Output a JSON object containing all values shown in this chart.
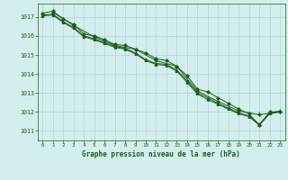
{
  "background_color": "#d4eeee",
  "grid_color": "#b8d8d8",
  "line_color": "#1a5c1a",
  "title": "Graphe pression niveau de la mer (hPa)",
  "xlim": [
    -0.5,
    23.5
  ],
  "ylim": [
    1010.5,
    1017.7
  ],
  "yticks": [
    1011,
    1012,
    1013,
    1014,
    1015,
    1016,
    1017
  ],
  "xticks": [
    0,
    1,
    2,
    3,
    4,
    5,
    6,
    7,
    8,
    9,
    10,
    11,
    12,
    13,
    14,
    15,
    16,
    17,
    18,
    19,
    20,
    21,
    22,
    23
  ],
  "series": [
    {
      "x": [
        0,
        1,
        2,
        3,
        4,
        5,
        6,
        7,
        8,
        9,
        10,
        11,
        12,
        13,
        14,
        15,
        16,
        17,
        18,
        19,
        20,
        21,
        22,
        23
      ],
      "y": [
        1017.2,
        1017.3,
        1016.9,
        1016.6,
        1016.1,
        1016.0,
        1015.8,
        1015.55,
        1015.5,
        1015.3,
        1015.1,
        1014.8,
        1014.7,
        1014.4,
        1013.9,
        1013.2,
        1013.05,
        1012.75,
        1012.45,
        1012.15,
        1011.9,
        1011.3,
        1012.0,
        1012.0
      ],
      "marker": "D"
    },
    {
      "x": [
        0,
        1,
        2,
        3,
        4,
        5,
        6,
        7,
        8,
        9,
        10,
        11,
        12,
        13,
        14,
        15,
        16,
        17,
        18,
        19,
        20,
        21,
        22,
        23
      ],
      "y": [
        1017.1,
        1017.15,
        1016.75,
        1016.45,
        1016.0,
        1015.85,
        1015.65,
        1015.45,
        1015.35,
        1015.1,
        1014.75,
        1014.55,
        1014.5,
        1014.2,
        1013.65,
        1013.0,
        1012.75,
        1012.45,
        1012.2,
        1011.95,
        1011.8,
        1011.35,
        1011.95,
        1012.05
      ],
      "marker": "^"
    },
    {
      "x": [
        0,
        1,
        2,
        3,
        4,
        5,
        6,
        7,
        8,
        9,
        10,
        11,
        12,
        13,
        14,
        15,
        16,
        17,
        18,
        19,
        20,
        21,
        22,
        23
      ],
      "y": [
        1017.05,
        1017.1,
        1016.7,
        1016.4,
        1015.95,
        1015.8,
        1015.6,
        1015.4,
        1015.3,
        1015.05,
        1014.7,
        1014.5,
        1014.45,
        1014.15,
        1013.55,
        1012.95,
        1012.65,
        1012.4,
        1012.15,
        1011.9,
        1011.75,
        1011.3,
        1011.9,
        1012.0
      ],
      "marker": "s"
    },
    {
      "x": [
        1,
        3,
        5,
        7,
        9,
        11,
        13,
        15,
        17,
        19,
        21,
        23
      ],
      "y": [
        1017.25,
        1016.55,
        1015.95,
        1015.5,
        1015.3,
        1014.7,
        1014.4,
        1013.1,
        1012.55,
        1012.05,
        1011.85,
        1012.0
      ],
      "marker": "D"
    }
  ]
}
